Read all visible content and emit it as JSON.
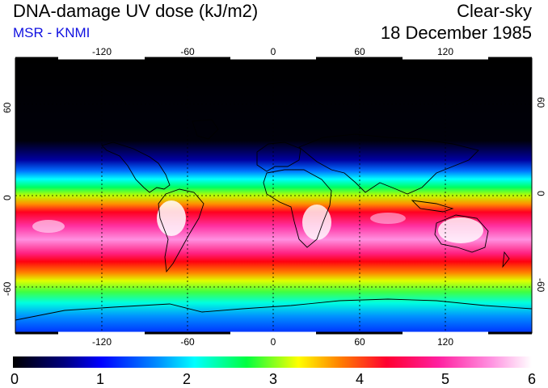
{
  "header": {
    "title": "DNA-damage UV dose (kJ/m2)",
    "source": "MSR - KNMI",
    "condition": "Clear-sky",
    "date": "18 December 1985"
  },
  "axes": {
    "lon_ticks": [
      "-120",
      "-60",
      "0",
      "60",
      "120"
    ],
    "lat_ticks": [
      "60",
      "0",
      "-60"
    ]
  },
  "colorbar": {
    "labels": [
      "0",
      "1",
      "2",
      "3",
      "4",
      "5",
      "6"
    ],
    "colors": [
      "#000000",
      "#0000aa",
      "#0040ff",
      "#00ffff",
      "#00ff40",
      "#ffff00",
      "#ff8000",
      "#ff0040",
      "#ff40c0",
      "#ffffff"
    ]
  }
}
